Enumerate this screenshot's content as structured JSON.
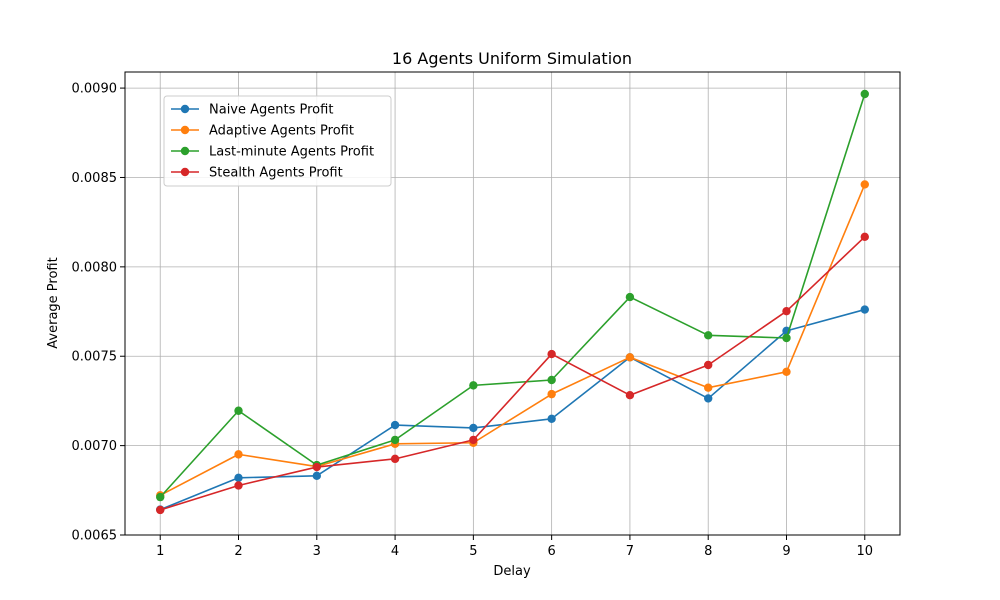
{
  "chart_data": {
    "type": "line",
    "title": "16 Agents Uniform Simulation",
    "xlabel": "Delay",
    "ylabel": "Average Profit",
    "x": [
      1,
      2,
      3,
      4,
      5,
      6,
      7,
      8,
      9,
      10
    ],
    "xticks": [
      "1",
      "2",
      "3",
      "4",
      "5",
      "6",
      "7",
      "8",
      "9",
      "10"
    ],
    "xlim": [
      0.55,
      10.45
    ],
    "ylim": [
      0.0065,
      0.00909
    ],
    "yticks": [
      0.0065,
      0.007,
      0.0075,
      0.008,
      0.0085,
      0.009
    ],
    "ytick_labels": [
      "0.0065",
      "0.0070",
      "0.0075",
      "0.0080",
      "0.0085",
      "0.0090"
    ],
    "grid": true,
    "legend_position": "upper-left",
    "series": [
      {
        "name": "Naive Agents Profit",
        "color": "#1f77b4",
        "values": [
          0.006642,
          0.00682,
          0.006831,
          0.007115,
          0.007099,
          0.00715,
          0.007494,
          0.007264,
          0.007642,
          0.007761
        ]
      },
      {
        "name": "Adaptive Agents Profit",
        "color": "#ff7f0e",
        "values": [
          0.006722,
          0.006951,
          0.006883,
          0.00701,
          0.007016,
          0.007288,
          0.007494,
          0.007324,
          0.007413,
          0.008461
        ]
      },
      {
        "name": "Last-minute Agents Profit",
        "color": "#2ca02c",
        "values": [
          0.006712,
          0.007195,
          0.006891,
          0.007032,
          0.007337,
          0.007367,
          0.007831,
          0.007617,
          0.007602,
          0.008967
        ]
      },
      {
        "name": "Stealth Agents Profit",
        "color": "#d62728",
        "values": [
          0.00664,
          0.006777,
          0.00688,
          0.006926,
          0.007032,
          0.007512,
          0.007282,
          0.007451,
          0.007752,
          0.008168
        ]
      }
    ]
  }
}
